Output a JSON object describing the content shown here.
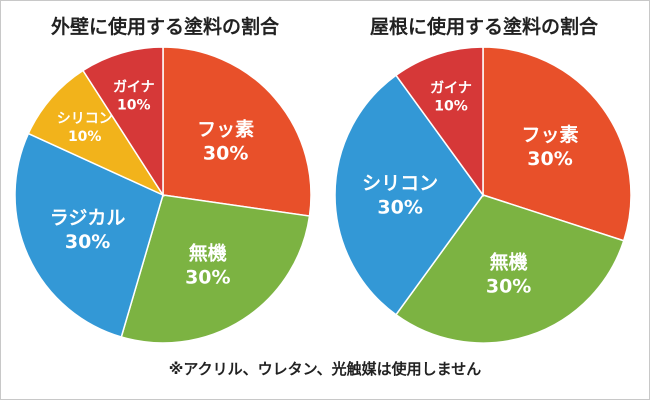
{
  "chart_data": [
    {
      "type": "pie",
      "title": "外壁に使用する塗料の割合",
      "slices": [
        {
          "label": "フッ素",
          "value": 30,
          "value_label": "30%",
          "color": "#e8502a"
        },
        {
          "label": "無機",
          "value": 30,
          "value_label": "30%",
          "color": "#7cb342"
        },
        {
          "label": "ラジカル",
          "value": 30,
          "value_label": "30%",
          "color": "#3398d6"
        },
        {
          "label": "シリコン",
          "value": 10,
          "value_label": "10%",
          "color": "#f2b31b"
        },
        {
          "label": "ガイナ",
          "value": 10,
          "value_label": "10%",
          "color": "#d63838"
        }
      ]
    },
    {
      "type": "pie",
      "title": "屋根に使用する塗料の割合",
      "slices": [
        {
          "label": "フッ素",
          "value": 30,
          "value_label": "30%",
          "color": "#e8502a"
        },
        {
          "label": "無機",
          "value": 30,
          "value_label": "30%",
          "color": "#7cb342"
        },
        {
          "label": "シリコン",
          "value": 30,
          "value_label": "30%",
          "color": "#3398d6"
        },
        {
          "label": "ガイナ",
          "value": 10,
          "value_label": "10%",
          "color": "#d63838"
        }
      ]
    }
  ],
  "footnote": "※アクリル、ウレタン、光触媒は使用しません"
}
